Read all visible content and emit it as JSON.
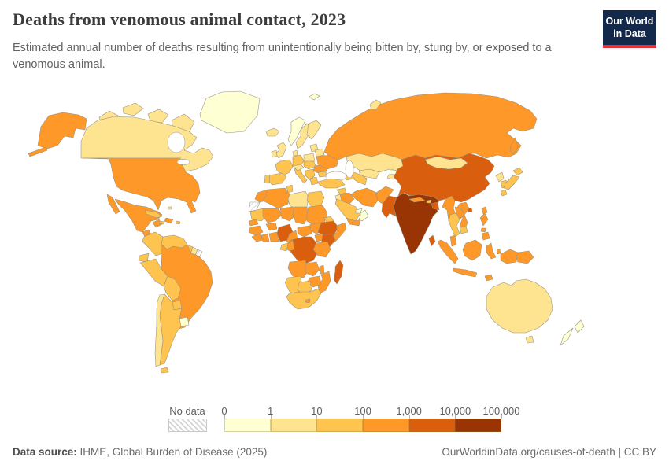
{
  "header": {
    "title": "Deaths from venomous animal contact, 2023",
    "subtitle": "Estimated annual number of deaths resulting from unintentionally being bitten by, stung by, or exposed to a venomous animal.",
    "logo": {
      "line1": "Our World",
      "line2": "in Data",
      "bg_color": "#12294b",
      "accent_color": "#e0303c"
    }
  },
  "footer": {
    "source_label": "Data source:",
    "source_text": " IHME, Global Burden of Disease (2025)",
    "link_text": "OurWorldinData.org/causes-of-death",
    "license_text": "CC BY",
    "separator": " | "
  },
  "chart_data": {
    "type": "choropleth-map",
    "title": "Deaths from venomous animal contact",
    "year": "2023",
    "unit": "deaths per year",
    "projection": "world",
    "legend": {
      "no_data_label": "No data",
      "tick_labels": [
        "0",
        "1",
        "10",
        "100",
        "1,000",
        "10,000",
        "100,000"
      ],
      "bin_ranges": [
        "0-1",
        "1-10",
        "10-100",
        "100-1,000",
        "1,000-10,000",
        "10,000-100,000"
      ],
      "bin_colors": [
        "#ffffd4",
        "#fee391",
        "#fec44f",
        "#fe9929",
        "#d95f0e",
        "#993404"
      ],
      "no_data_pattern": "diagonal-hatch-grey",
      "position": "bottom"
    },
    "countries": {
      "greenland": 0,
      "iceland": 1,
      "canada": 1,
      "usa": 3,
      "mexico": 3,
      "guatemala": 3,
      "honduras-nicaragua": 2,
      "costa-rica-panama": 2,
      "cuba": 2,
      "hispaniola": 3,
      "jamaica": 2,
      "puerto-rico": 2,
      "bahamas": 1,
      "colombia": 2,
      "venezuela": 2,
      "guyana": 2,
      "suriname": 1,
      "french-guiana": "nd",
      "ecuador": 2,
      "peru": 2,
      "brazil": 3,
      "bolivia": 2,
      "paraguay": 2,
      "uruguay": 0,
      "argentina": 2,
      "chile": 1,
      "uk": 1,
      "ireland": 1,
      "norway": 0,
      "sweden": 1,
      "finland": 1,
      "denmark": 1,
      "germany": 2,
      "poland": 1,
      "belarus": 1,
      "baltics": 1,
      "france": 2,
      "spain": 2,
      "portugal": 2,
      "italy": 2,
      "switzerland-austria": 1,
      "czech-slovakia-hungary": 2,
      "balkans": 2,
      "greece": 2,
      "romania": 3,
      "bulgaria": 2,
      "ukraine": 3,
      "turkey": 2,
      "russia": 3,
      "svalbard": 0,
      "novaya-zemlya": 1,
      "sakhalin": 3,
      "kazakhstan": 1,
      "uzbekistan": 1,
      "turkmenistan": 2,
      "kyrgyzstan": 0,
      "tajikistan": 1,
      "caucasus": 2,
      "syria": 2,
      "iraq": 3,
      "iran": 3,
      "saudi-arabia": 2,
      "jordan-israel": 1,
      "yemen": 3,
      "oman": 0,
      "uae-qatar": 0,
      "afghanistan": 3,
      "pakistan": 4,
      "india": 5,
      "nepal": 3,
      "bhutan": 2,
      "bangladesh": 4,
      "sri-lanka": 4,
      "myanmar": 3,
      "china": 4,
      "mongolia": 1,
      "north-korea": 1,
      "south-korea": 2,
      "japan": 2,
      "taiwan": 3,
      "thailand": 2,
      "laos": 3,
      "cambodia": 2,
      "vietnam": 3,
      "malaysia": 3,
      "indonesia": 3,
      "philippines": 3,
      "papua-new-guinea": 3,
      "australia": 1,
      "new-zealand": 0,
      "morocco": 3,
      "western-sahara": "nd",
      "algeria": 3,
      "tunisia": 2,
      "libya": 1,
      "egypt": 2,
      "mauritania": 2,
      "mali": 3,
      "niger": 3,
      "chad": 3,
      "sudan": 3,
      "eritrea": 2,
      "senegal-gambia": 3,
      "guinea-region": 3,
      "sierra-leone-liberia": 3,
      "ivory-coast": 3,
      "ghana-togo-benin": 3,
      "burkina-faso": 3,
      "nigeria": 4,
      "cameroon": 3,
      "central-african-republic": 3,
      "south-sudan": 3,
      "ethiopia": 4,
      "somalia": 3,
      "uganda": 3,
      "kenya": 4,
      "drc": 4,
      "congo": 3,
      "gabon": 2,
      "tanzania": 3,
      "angola": 3,
      "zambia": 3,
      "malawi": 3,
      "mozambique": 3,
      "zimbabwe": 3,
      "namibia": 2,
      "botswana": 2,
      "south-africa": 2,
      "lesotho": 3,
      "madagascar": 4
    }
  }
}
